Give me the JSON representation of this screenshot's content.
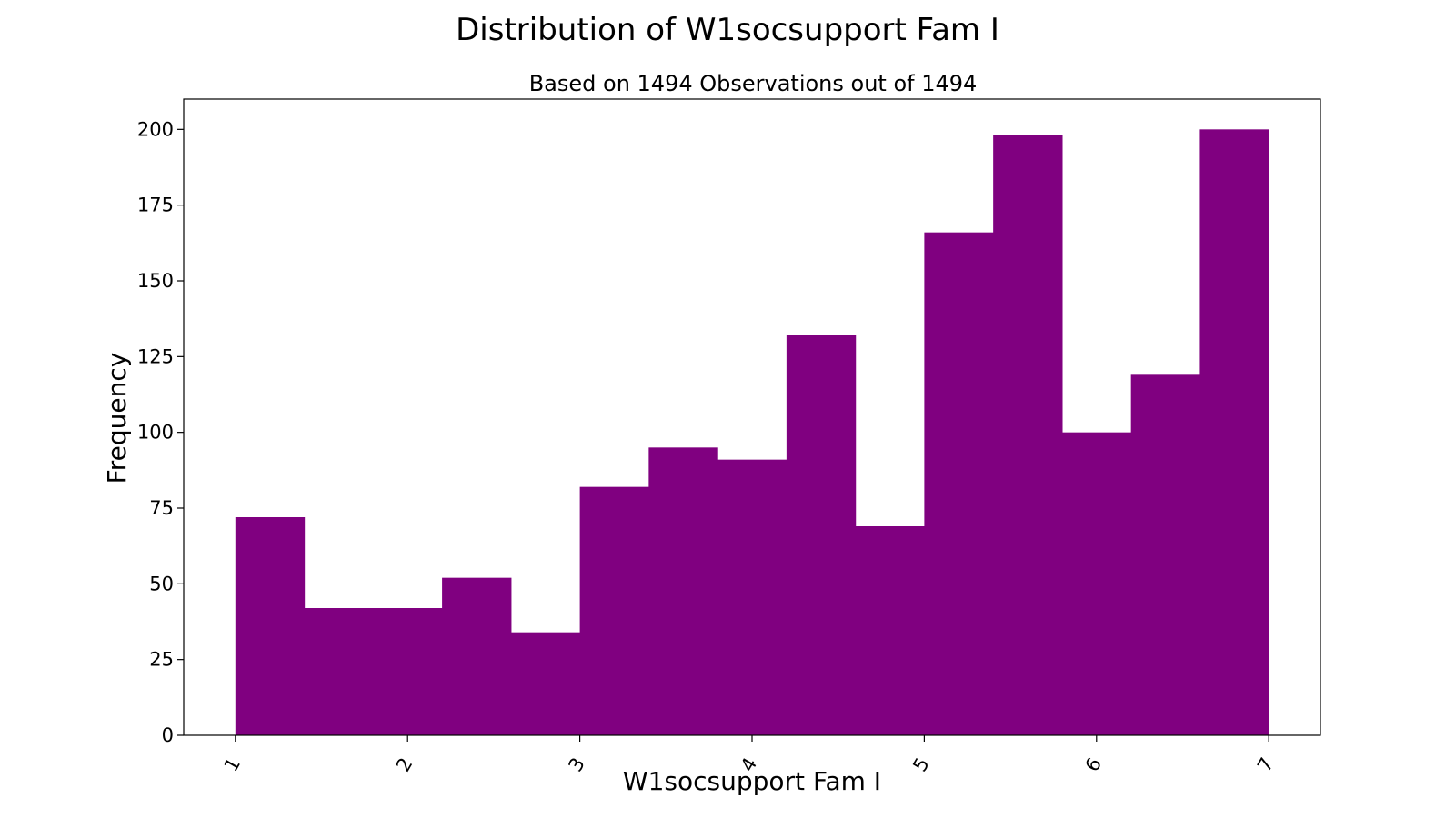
{
  "chart_data": {
    "type": "bar",
    "title": "Distribution of W1socsupport Fam I",
    "subtitle": "Based on 1494 Observations out of 1494",
    "xlabel": "W1socsupport Fam I",
    "ylabel": "Frequency",
    "xlim": [
      0.7,
      7.3
    ],
    "ylim": [
      0,
      210
    ],
    "x_ticks": [
      1,
      2,
      3,
      4,
      5,
      6,
      7
    ],
    "x_tick_labels": [
      "1",
      "2",
      "3",
      "4",
      "5",
      "6",
      "7"
    ],
    "y_ticks": [
      0,
      25,
      50,
      75,
      100,
      125,
      150,
      175,
      200
    ],
    "y_tick_labels": [
      "0",
      "25",
      "50",
      "75",
      "100",
      "125",
      "150",
      "175",
      "200"
    ],
    "bin_edges": [
      1.0,
      1.4,
      1.8,
      2.2,
      2.6,
      3.0,
      3.4,
      3.8,
      4.2,
      4.6,
      5.0,
      5.4,
      5.8,
      6.2,
      6.6,
      7.0
    ],
    "values": [
      72,
      42,
      42,
      52,
      34,
      82,
      95,
      91,
      132,
      69,
      166,
      198,
      100,
      119,
      200
    ],
    "bar_color": "#800080",
    "grid": false,
    "legend": "none"
  }
}
